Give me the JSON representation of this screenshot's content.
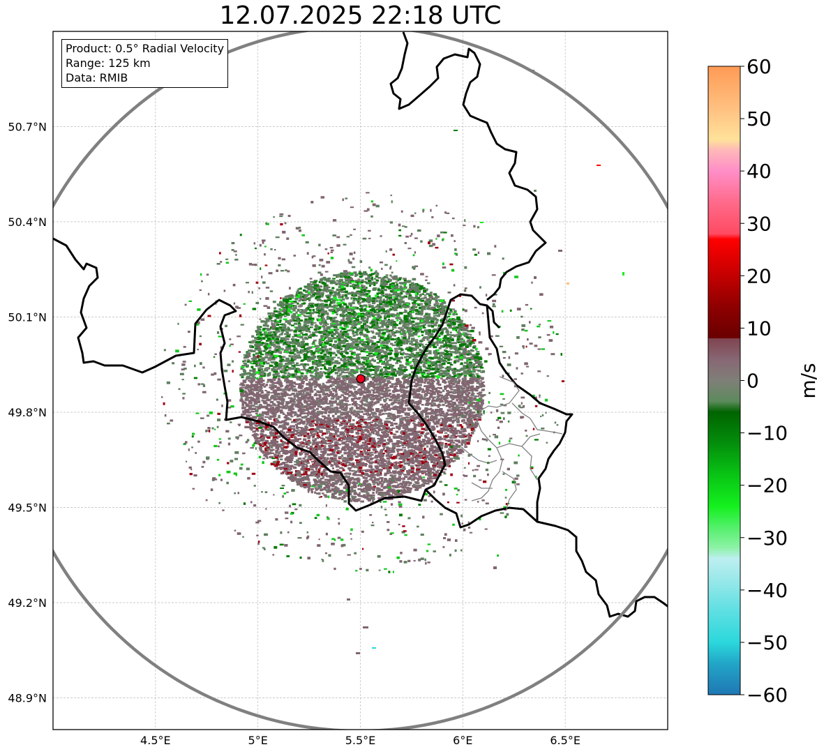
{
  "title": "12.07.2025 22:18 UTC",
  "info_box": {
    "product": "Product: 0.5° Radial Velocity",
    "range": "Range: 125 km",
    "data": "Data: RMIB"
  },
  "axes": {
    "lon_ticks": [
      "4.5°E",
      "5°E",
      "5.5°E",
      "6°E",
      "6.5°E"
    ],
    "lat_ticks": [
      "50.7°N",
      "50.4°N",
      "50.1°N",
      "49.8°N",
      "49.5°N",
      "49.2°N",
      "48.9°N"
    ],
    "lon_range": [
      4.0,
      7.0
    ],
    "lat_range": [
      48.8,
      51.0
    ],
    "grid": true
  },
  "radar": {
    "site_lon": 5.5,
    "site_lat": 49.91,
    "range_ring_color": "#808080",
    "site_marker_color": "#e8001c"
  },
  "colorbar": {
    "label": "m/s",
    "min": -60,
    "max": 60,
    "ticks": [
      "60",
      "50",
      "40",
      "30",
      "20",
      "10",
      "0",
      "−10",
      "−20",
      "−30",
      "−40",
      "−50",
      "−60"
    ],
    "stops": [
      {
        "v": -60,
        "c": "#1f77b4"
      },
      {
        "v": -54,
        "c": "#22a6c8"
      },
      {
        "v": -50,
        "c": "#2bd8dc"
      },
      {
        "v": -44,
        "c": "#5edfe2"
      },
      {
        "v": -38,
        "c": "#9ae8ea"
      },
      {
        "v": -34,
        "c": "#bdeff0"
      },
      {
        "v": -32,
        "c": "#8ff2a8"
      },
      {
        "v": -28,
        "c": "#52f06a"
      },
      {
        "v": -24,
        "c": "#14f01e"
      },
      {
        "v": -18,
        "c": "#08c414"
      },
      {
        "v": -12,
        "c": "#048e0c"
      },
      {
        "v": -6,
        "c": "#006400"
      },
      {
        "v": -4,
        "c": "#5c8a5c"
      },
      {
        "v": 0,
        "c": "#7f7f78"
      },
      {
        "v": 4,
        "c": "#876774"
      },
      {
        "v": 8,
        "c": "#804450"
      },
      {
        "v": 8.1,
        "c": "#6a0000"
      },
      {
        "v": 14,
        "c": "#8e0000"
      },
      {
        "v": 20,
        "c": "#c40000"
      },
      {
        "v": 27,
        "c": "#ff0000"
      },
      {
        "v": 28,
        "c": "#ff4a62"
      },
      {
        "v": 34,
        "c": "#ff6a8a"
      },
      {
        "v": 40,
        "c": "#ff8ec8"
      },
      {
        "v": 44,
        "c": "#ffb8b8"
      },
      {
        "v": 46,
        "c": "#ffe29a"
      },
      {
        "v": 52,
        "c": "#ffc080"
      },
      {
        "v": 60,
        "c": "#ff9a55"
      }
    ]
  },
  "colors": {
    "approaching_strong": "#007a00",
    "approaching_light": "#5f7f5f",
    "receding_light": "#806670",
    "receding_strong": "#a00010",
    "border": "#000000",
    "region_border": "#808080"
  }
}
